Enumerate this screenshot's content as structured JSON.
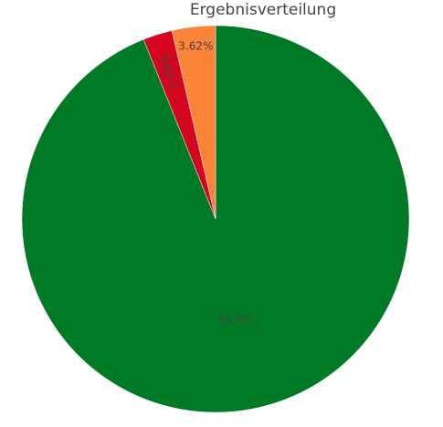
{
  "chart_data": {
    "type": "pie",
    "title": "Ergebnisverteilung",
    "labels": [
      "",
      "",
      ""
    ],
    "values": [
      93.9,
      2.44,
      3.62
    ],
    "value_labels": [
      "93.9%",
      "2.44%",
      "3.62%"
    ],
    "colors": [
      "#007a27",
      "#d4051e",
      "#fb843a"
    ],
    "direction": "clockwise",
    "start": "top"
  }
}
